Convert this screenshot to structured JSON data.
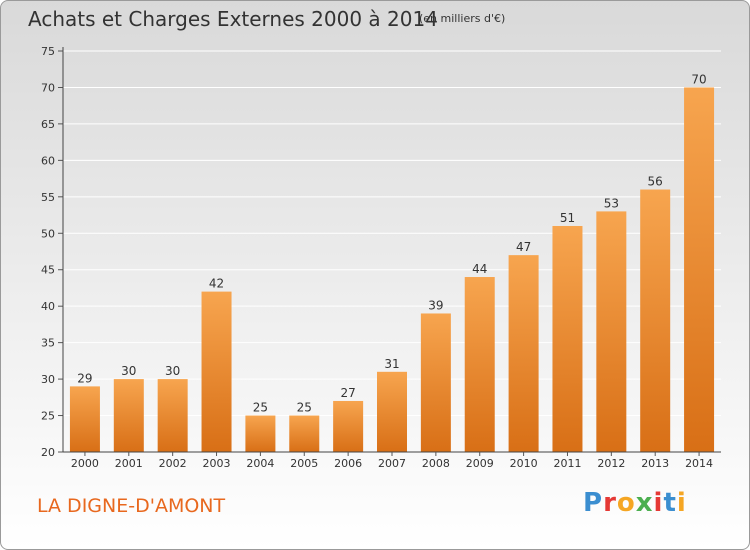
{
  "header": {
    "title": "Achats et Charges Externes 2000 à 2014",
    "subtitle": "(en milliers d'€)"
  },
  "footer": {
    "commune": "LA DIGNE-D'AMONT",
    "logo_letters": [
      "P",
      "r",
      "o",
      "x",
      "i",
      "t",
      "i"
    ],
    "logo_colors": [
      "#3b8ed0",
      "#e53935",
      "#f5a623",
      "#4caf50",
      "#e53935",
      "#3b8ed0",
      "#f5a623"
    ]
  },
  "chart_data": {
    "type": "bar",
    "categories": [
      "2000",
      "2001",
      "2002",
      "2003",
      "2004",
      "2005",
      "2006",
      "2007",
      "2008",
      "2009",
      "2010",
      "2011",
      "2012",
      "2013",
      "2014"
    ],
    "values": [
      29,
      30,
      30,
      42,
      25,
      25,
      27,
      31,
      39,
      44,
      47,
      51,
      53,
      56,
      70
    ],
    "ylim": [
      20,
      75
    ],
    "yticks": [
      20,
      25,
      30,
      35,
      40,
      45,
      50,
      55,
      60,
      65,
      70,
      75
    ],
    "grid": true,
    "bar_colors": {
      "top": "#f7a54f",
      "bottom": "#d86f16"
    },
    "grid_color": "#ffffff"
  }
}
